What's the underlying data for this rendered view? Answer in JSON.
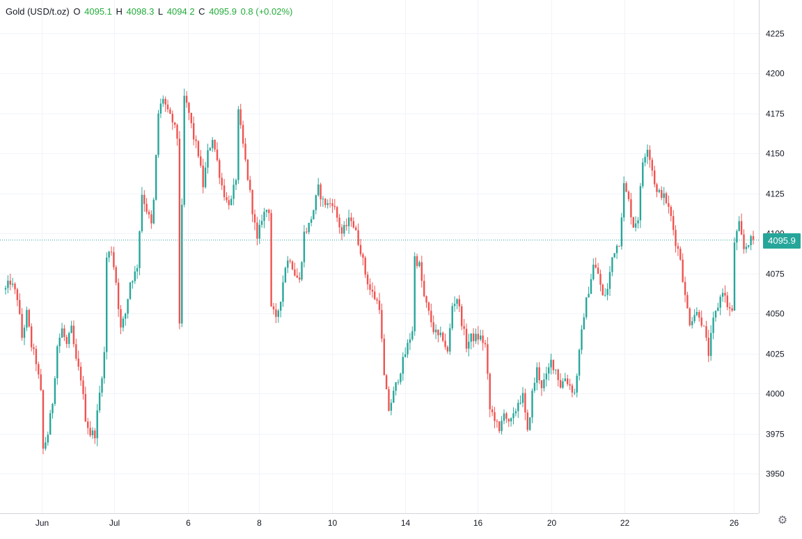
{
  "legend": {
    "symbol": "Gold (USD/t.oz)",
    "open_label": "O",
    "open": "4095.1",
    "high_label": "H",
    "high": "4098.3",
    "low_label": "L",
    "low": "4094.2",
    "close_label": "C",
    "close": "4095.9",
    "change": "0.8 (+0.02%)"
  },
  "last_price_tag": "4095.9",
  "settings_icon": "gear-icon",
  "colors": {
    "up": "#26a69a",
    "down": "#ef5350",
    "grid": "#f0f3fa",
    "text": "#131722",
    "legend_values": "#22ab3a"
  },
  "chart_data": {
    "type": "candlestick",
    "y_ticks": [
      "4225",
      "4200",
      "4175",
      "4150",
      "4125",
      "4100",
      "4075",
      "4050",
      "4025",
      "4000",
      "3975",
      "3950"
    ],
    "x_tick_labels": [
      "Jun",
      "Jul",
      "6",
      "8",
      "10",
      "14",
      "16",
      "20",
      "22",
      "26"
    ],
    "ylim": [
      3925,
      4245
    ],
    "last_price": 4095.9,
    "grid": true,
    "path": [
      [
        0,
        4065
      ],
      [
        2,
        4070
      ],
      [
        5,
        4060
      ],
      [
        7,
        4035
      ],
      [
        9,
        4050
      ],
      [
        11,
        4030
      ],
      [
        13,
        4020
      ],
      [
        15,
        4000
      ],
      [
        16,
        3965
      ],
      [
        18,
        3975
      ],
      [
        20,
        3995
      ],
      [
        22,
        4030
      ],
      [
        24,
        4040
      ],
      [
        26,
        4030
      ],
      [
        28,
        4040
      ],
      [
        30,
        4020
      ],
      [
        32,
        4010
      ],
      [
        34,
        3985
      ],
      [
        36,
        3975
      ],
      [
        38,
        3975
      ],
      [
        40,
        4000
      ],
      [
        42,
        4025
      ],
      [
        43,
        4085
      ],
      [
        45,
        4090
      ],
      [
        47,
        4070
      ],
      [
        49,
        4040
      ],
      [
        51,
        4050
      ],
      [
        53,
        4070
      ],
      [
        55,
        4075
      ],
      [
        56,
        4080
      ],
      [
        58,
        4125
      ],
      [
        60,
        4115
      ],
      [
        62,
        4105
      ],
      [
        63,
        4120
      ],
      [
        65,
        4175
      ],
      [
        67,
        4185
      ],
      [
        69,
        4175
      ],
      [
        71,
        4170
      ],
      [
        73,
        4160
      ],
      [
        74,
        4045
      ],
      [
        76,
        4185
      ],
      [
        78,
        4175
      ],
      [
        80,
        4160
      ],
      [
        82,
        4150
      ],
      [
        84,
        4130
      ],
      [
        86,
        4150
      ],
      [
        88,
        4160
      ],
      [
        90,
        4145
      ],
      [
        92,
        4130
      ],
      [
        94,
        4120
      ],
      [
        96,
        4120
      ],
      [
        98,
        4135
      ],
      [
        99,
        4175
      ],
      [
        101,
        4155
      ],
      [
        103,
        4135
      ],
      [
        105,
        4115
      ],
      [
        107,
        4095
      ],
      [
        109,
        4110
      ],
      [
        111,
        4115
      ],
      [
        112,
        4115
      ],
      [
        113,
        4055
      ],
      [
        115,
        4045
      ],
      [
        117,
        4060
      ],
      [
        119,
        4080
      ],
      [
        121,
        4085
      ],
      [
        123,
        4075
      ],
      [
        125,
        4070
      ],
      [
        127,
        4100
      ],
      [
        129,
        4105
      ],
      [
        131,
        4115
      ],
      [
        133,
        4128
      ],
      [
        135,
        4120
      ],
      [
        137,
        4118
      ],
      [
        139,
        4120
      ],
      [
        141,
        4110
      ],
      [
        143,
        4100
      ],
      [
        145,
        4105
      ],
      [
        147,
        4110
      ],
      [
        149,
        4100
      ],
      [
        151,
        4090
      ],
      [
        153,
        4075
      ],
      [
        155,
        4065
      ],
      [
        157,
        4060
      ],
      [
        159,
        4055
      ],
      [
        161,
        4010
      ],
      [
        163,
        3990
      ],
      [
        165,
        4000
      ],
      [
        167,
        4010
      ],
      [
        169,
        4020
      ],
      [
        171,
        4030
      ],
      [
        173,
        4040
      ],
      [
        174,
        4085
      ],
      [
        176,
        4080
      ],
      [
        178,
        4060
      ],
      [
        180,
        4050
      ],
      [
        182,
        4040
      ],
      [
        184,
        4035
      ],
      [
        186,
        4035
      ],
      [
        188,
        4025
      ],
      [
        190,
        4055
      ],
      [
        192,
        4060
      ],
      [
        194,
        4045
      ],
      [
        196,
        4030
      ],
      [
        198,
        4035
      ],
      [
        200,
        4035
      ],
      [
        202,
        4035
      ],
      [
        204,
        4030
      ],
      [
        206,
        3990
      ],
      [
        208,
        3985
      ],
      [
        210,
        3975
      ],
      [
        212,
        3990
      ],
      [
        214,
        3980
      ],
      [
        216,
        3985
      ],
      [
        218,
        3995
      ],
      [
        220,
        3998
      ],
      [
        222,
        3975
      ],
      [
        224,
        4000
      ],
      [
        226,
        4015
      ],
      [
        228,
        4005
      ],
      [
        230,
        4010
      ],
      [
        232,
        4020
      ],
      [
        234,
        4015
      ],
      [
        236,
        4005
      ],
      [
        238,
        4010
      ],
      [
        240,
        4005
      ],
      [
        242,
        4000
      ],
      [
        244,
        4025
      ],
      [
        246,
        4050
      ],
      [
        248,
        4065
      ],
      [
        250,
        4080
      ],
      [
        252,
        4075
      ],
      [
        254,
        4060
      ],
      [
        256,
        4065
      ],
      [
        258,
        4085
      ],
      [
        259,
        4090
      ],
      [
        261,
        4095
      ],
      [
        263,
        4130
      ],
      [
        265,
        4120
      ],
      [
        267,
        4105
      ],
      [
        269,
        4110
      ],
      [
        271,
        4145
      ],
      [
        273,
        4155
      ],
      [
        275,
        4140
      ],
      [
        277,
        4125
      ],
      [
        279,
        4125
      ],
      [
        281,
        4120
      ],
      [
        283,
        4110
      ],
      [
        285,
        4095
      ],
      [
        287,
        4085
      ],
      [
        289,
        4060
      ],
      [
        291,
        4045
      ],
      [
        293,
        4050
      ],
      [
        295,
        4050
      ],
      [
        297,
        4040
      ],
      [
        299,
        4025
      ],
      [
        301,
        4045
      ],
      [
        303,
        4055
      ],
      [
        305,
        4065
      ],
      [
        307,
        4055
      ],
      [
        309,
        4050
      ],
      [
        310,
        4095
      ],
      [
        312,
        4105
      ],
      [
        314,
        4090
      ],
      [
        316,
        4095
      ],
      [
        318,
        4096
      ]
    ],
    "candle_count": 319
  }
}
